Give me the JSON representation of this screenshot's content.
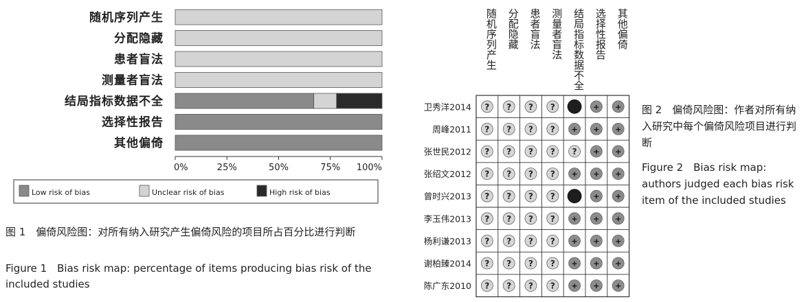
{
  "chart_data": [
    {
      "type": "bar",
      "orientation": "horizontal",
      "stacked": true,
      "categories": [
        "随机序列产生",
        "分配隐藏",
        "患者盲法",
        "测量者盲法",
        "结局指标数据不全",
        "选择性报告",
        "其他偏倚"
      ],
      "series": [
        {
          "name": "Low risk of bias",
          "color": "#8a8a8a",
          "values": [
            0,
            0,
            0,
            0,
            67,
            100,
            100
          ]
        },
        {
          "name": "Unclear risk of bias",
          "color": "#d4d4d4",
          "values": [
            100,
            100,
            100,
            100,
            11,
            0,
            0
          ]
        },
        {
          "name": "High risk of bias",
          "color": "#2a2a2a",
          "values": [
            0,
            0,
            0,
            0,
            22,
            0,
            0
          ]
        }
      ],
      "xlim": [
        0,
        100
      ],
      "xticks": [
        "0%",
        "25%",
        "50%",
        "75%",
        "100%"
      ],
      "legend_position": "bottom",
      "caption": {
        "cn": "图 1　偏倚风险图：对所有纳入研究产生偏倚风险的项目所占百分比进行判断",
        "en": "Figure 1　Bias risk map: percentage of items producing bias risk of the included studies"
      }
    },
    {
      "type": "table",
      "columns": [
        "随机序列产生",
        "分配隐藏",
        "患者盲法",
        "测量者盲法",
        "结局指标数据不全",
        "选择性报告",
        "其他偏倚"
      ],
      "rows": [
        "卫秀洋2014",
        "周峰2011",
        "张世民2012",
        "张绍文2012",
        "曾时兴2013",
        "李玉伟2013",
        "杨利谦2013",
        "谢柏臻2014",
        "陈广东2010"
      ],
      "cells": [
        [
          "?",
          "?",
          "?",
          "?",
          "-",
          "+",
          "+"
        ],
        [
          "?",
          "?",
          "?",
          "?",
          "+",
          "+",
          "+"
        ],
        [
          "?",
          "?",
          "?",
          "?",
          "?",
          "+",
          "+"
        ],
        [
          "?",
          "?",
          "?",
          "?",
          "+",
          "+",
          "+"
        ],
        [
          "?",
          "?",
          "?",
          "?",
          "-",
          "+",
          "+"
        ],
        [
          "?",
          "?",
          "?",
          "?",
          "+",
          "+",
          "+"
        ],
        [
          "?",
          "?",
          "?",
          "?",
          "+",
          "+",
          "+"
        ],
        [
          "?",
          "?",
          "?",
          "?",
          "+",
          "+",
          "+"
        ],
        [
          "?",
          "?",
          "?",
          "?",
          "+",
          "+",
          "+"
        ]
      ],
      "symbol_colors": {
        "?": "#d6d6d6",
        "+": "#8c8c8c",
        "-": "#1e1e1e"
      },
      "caption": {
        "cn": "图 2　偏倚风险图：作者对所有纳入研究中每个偏倚风险项目进行判断",
        "en": "Figure 2　Bias risk map: authors judged each bias risk item of the included studies"
      }
    }
  ]
}
